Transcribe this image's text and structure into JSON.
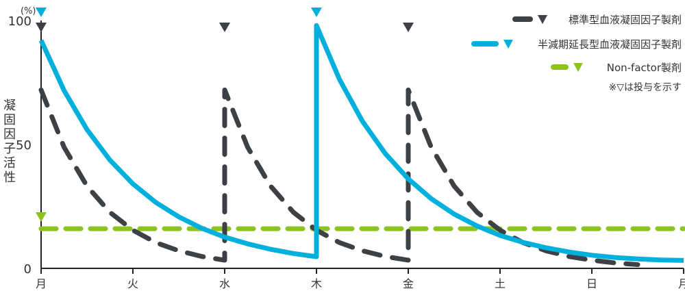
{
  "chart_data": {
    "type": "line",
    "ylabel": "凝固因子活性",
    "yunit": "(%)",
    "ylim": [
      0,
      100
    ],
    "yticks": [
      0,
      50,
      100
    ],
    "xlim": [
      0,
      7
    ],
    "xtick_labels": [
      "月",
      "火",
      "水",
      "木",
      "金",
      "土",
      "日",
      "月"
    ],
    "grid": false,
    "legend_position": "top-right",
    "note": "※▽は投与を示す",
    "series": [
      {
        "name": "標準型血液凝固因子製剤",
        "color": "#3d4145",
        "style": "dashed",
        "doses": [
          0,
          2,
          4
        ],
        "points": [
          [
            0,
            72
          ],
          [
            0.25,
            48.9
          ],
          [
            0.5,
            33.2
          ],
          [
            0.75,
            22.6
          ],
          [
            1,
            15.4
          ],
          [
            1.25,
            10.4
          ],
          [
            1.5,
            7.1
          ],
          [
            1.75,
            4.8
          ],
          [
            2,
            3.3
          ],
          [
            2,
            72
          ],
          [
            2.25,
            48.9
          ],
          [
            2.5,
            33.2
          ],
          [
            2.75,
            22.6
          ],
          [
            3,
            15.4
          ],
          [
            3.25,
            10.4
          ],
          [
            3.5,
            7.1
          ],
          [
            3.75,
            4.8
          ],
          [
            4,
            3.3
          ],
          [
            4,
            72
          ],
          [
            4.25,
            48.9
          ],
          [
            4.5,
            33.2
          ],
          [
            4.75,
            22.6
          ],
          [
            5,
            15.4
          ],
          [
            5.25,
            10.4
          ],
          [
            5.5,
            7.1
          ],
          [
            5.75,
            4.8
          ],
          [
            6,
            3.3
          ],
          [
            6.25,
            2.2
          ],
          [
            6.5,
            1.5
          ]
        ]
      },
      {
        "name": "半減期延長型血液凝固因子製剤",
        "color": "#00b0dc",
        "style": "solid",
        "doses": [
          0,
          3
        ],
        "points": [
          [
            0,
            92
          ],
          [
            0.25,
            71.8
          ],
          [
            0.5,
            56
          ],
          [
            0.75,
            43.7
          ],
          [
            1,
            34.1
          ],
          [
            1.25,
            26.6
          ],
          [
            1.5,
            20.8
          ],
          [
            1.75,
            16.2
          ],
          [
            2,
            12.6
          ],
          [
            2.25,
            9.9
          ],
          [
            2.5,
            7.7
          ],
          [
            2.75,
            6
          ],
          [
            3,
            4.7
          ],
          [
            3,
            98
          ],
          [
            3.25,
            76.3
          ],
          [
            3.5,
            59.4
          ],
          [
            3.75,
            46.3
          ],
          [
            4,
            36.1
          ],
          [
            4.25,
            28.1
          ],
          [
            4.5,
            21.9
          ],
          [
            4.75,
            17.1
          ],
          [
            5,
            13.3
          ],
          [
            5.25,
            10.5
          ],
          [
            5.5,
            8.3
          ],
          [
            5.75,
            6.6
          ],
          [
            6,
            5.3
          ],
          [
            6.25,
            4.4
          ],
          [
            6.5,
            3.8
          ],
          [
            6.75,
            3.4
          ],
          [
            7,
            3.2
          ]
        ]
      },
      {
        "name": "Non-factor製剤",
        "color": "#8cc31e",
        "style": "dashed",
        "doses": [
          0
        ],
        "points": [
          [
            0,
            16
          ],
          [
            7,
            16
          ]
        ]
      }
    ]
  }
}
